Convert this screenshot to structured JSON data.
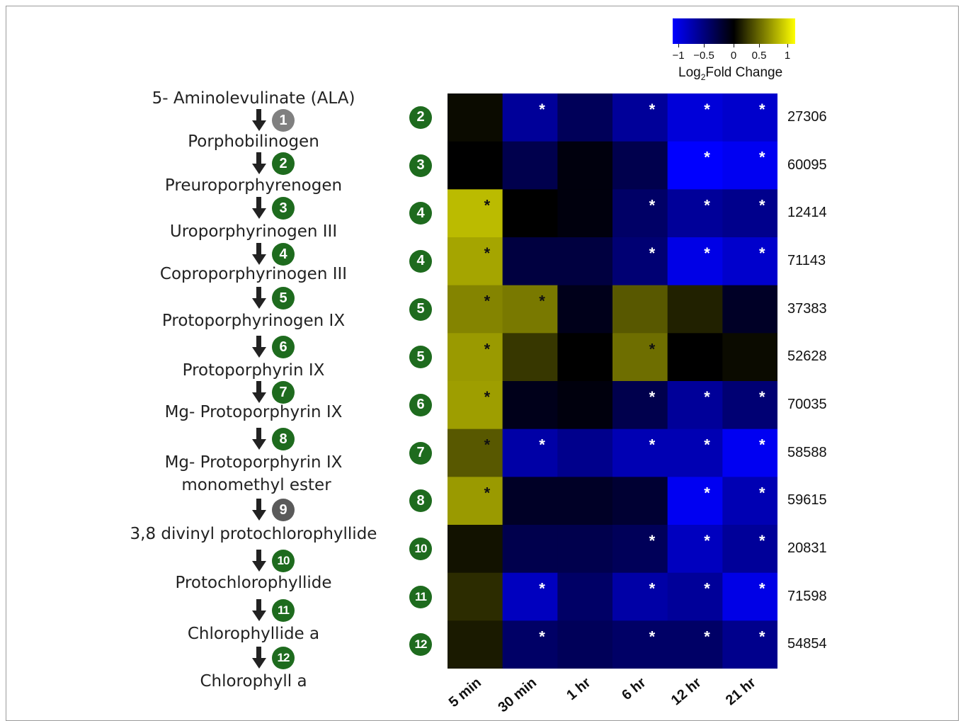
{
  "legend": {
    "title_prefix": "Log",
    "title_sub": "2",
    "title_suffix": "Fold Change",
    "ticks": [
      "−1",
      "−0.5",
      "0",
      "0.5",
      "1"
    ],
    "colors": {
      "low": "#0000ff",
      "mid": "#000000",
      "high": "#ffff00"
    }
  },
  "pathway": {
    "metabolites": [
      "5- Aminolevulinate (ALA)",
      "Porphobilinogen",
      "Preuroporphyrenogen",
      "Uroporphyrinogen III",
      "Coproporphyrinogen III",
      "Protoporphyrinogen IX",
      "Protoporphyrin IX",
      "Mg- Protoporphyrin IX",
      "Mg- Protoporphyrin IX",
      "monomethyl ester",
      "3,8 divinyl protochlorophyllide",
      "Protochlorophyllide",
      "Chlorophyllide a",
      "Chlorophyll a"
    ],
    "steps": [
      {
        "label": "1",
        "color": "#808080"
      },
      {
        "label": "2",
        "color": "#1e6b1e"
      },
      {
        "label": "3",
        "color": "#1e6b1e"
      },
      {
        "label": "4",
        "color": "#1e6b1e"
      },
      {
        "label": "5",
        "color": "#1e6b1e"
      },
      {
        "label": "6",
        "color": "#1e6b1e"
      },
      {
        "label": "7",
        "color": "#1e6b1e"
      },
      {
        "label": "8",
        "color": "#1e6b1e"
      },
      {
        "label": "9",
        "color": "#5a5a5a"
      },
      {
        "label": "10",
        "color": "#1e6b1e"
      },
      {
        "label": "11",
        "color": "#1e6b1e"
      },
      {
        "label": "12",
        "color": "#1e6b1e"
      }
    ]
  },
  "chart_data": {
    "type": "heatmap",
    "columns": [
      "5 min",
      "30 min",
      "1 hr",
      "6 hr",
      "12 hr",
      "21 hr"
    ],
    "rows": [
      {
        "step": "2",
        "gene": "27306",
        "values": [
          0.05,
          -0.6,
          -0.35,
          -0.6,
          -0.85,
          -0.8
        ],
        "significant": [
          false,
          true,
          false,
          true,
          true,
          true
        ]
      },
      {
        "step": "3",
        "gene": "60095",
        "values": [
          0.0,
          -0.3,
          -0.05,
          -0.3,
          -1.0,
          -0.95
        ],
        "significant": [
          false,
          false,
          false,
          false,
          true,
          true
        ]
      },
      {
        "step": "4",
        "gene": "12414",
        "values": [
          0.85,
          0.0,
          -0.05,
          -0.4,
          -0.6,
          -0.55
        ],
        "significant": [
          true,
          false,
          false,
          true,
          true,
          true
        ]
      },
      {
        "step": "4",
        "gene": "71143",
        "values": [
          0.75,
          -0.25,
          -0.25,
          -0.45,
          -0.9,
          -0.8
        ],
        "significant": [
          true,
          false,
          false,
          true,
          true,
          true
        ]
      },
      {
        "step": "5",
        "gene": "37383",
        "values": [
          0.6,
          0.55,
          -0.1,
          0.4,
          0.15,
          -0.15
        ],
        "significant": [
          true,
          true,
          false,
          false,
          false,
          false
        ]
      },
      {
        "step": "5",
        "gene": "52628",
        "values": [
          0.7,
          0.25,
          0.0,
          0.5,
          0.0,
          0.05
        ],
        "significant": [
          true,
          false,
          false,
          true,
          false,
          false
        ]
      },
      {
        "step": "6",
        "gene": "70035",
        "values": [
          0.72,
          -0.1,
          -0.05,
          -0.3,
          -0.6,
          -0.45
        ],
        "significant": [
          true,
          false,
          false,
          true,
          true,
          true
        ]
      },
      {
        "step": "7",
        "gene": "58588",
        "values": [
          0.4,
          -0.65,
          -0.55,
          -0.7,
          -0.7,
          -0.95
        ],
        "significant": [
          true,
          true,
          false,
          true,
          true,
          true
        ]
      },
      {
        "step": "8",
        "gene": "59615",
        "values": [
          0.7,
          -0.15,
          -0.15,
          -0.2,
          -0.95,
          -0.7
        ],
        "significant": [
          true,
          false,
          false,
          false,
          true,
          true
        ]
      },
      {
        "step": "10",
        "gene": "20831",
        "values": [
          0.08,
          -0.3,
          -0.3,
          -0.35,
          -0.75,
          -0.6
        ],
        "significant": [
          false,
          false,
          false,
          true,
          true,
          true
        ]
      },
      {
        "step": "11",
        "gene": "71598",
        "values": [
          0.2,
          -0.75,
          -0.4,
          -0.65,
          -0.6,
          -0.9
        ],
        "significant": [
          false,
          true,
          false,
          true,
          true,
          true
        ]
      },
      {
        "step": "12",
        "gene": "54854",
        "values": [
          0.12,
          -0.4,
          -0.35,
          -0.4,
          -0.4,
          -0.55
        ],
        "significant": [
          false,
          true,
          false,
          true,
          true,
          true
        ]
      }
    ],
    "scale_range": [
      -1,
      1
    ]
  }
}
